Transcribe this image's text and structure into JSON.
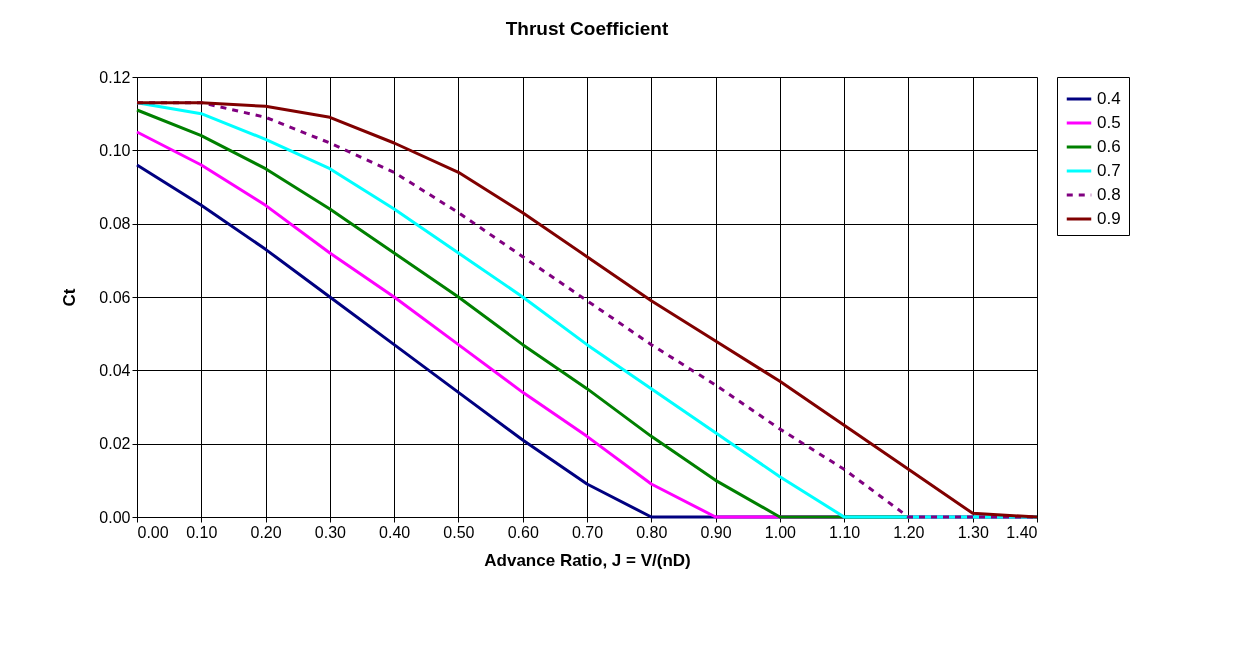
{
  "chart_data": {
    "type": "line",
    "title": "Thrust Coefficient",
    "xlabel": "Advance Ratio, J = V/(nD)",
    "ylabel": "Ct",
    "x": [
      0,
      0.1,
      0.2,
      0.3,
      0.4,
      0.5,
      0.6,
      0.7,
      0.8,
      0.9,
      1.0,
      1.1,
      1.2,
      1.3,
      1.4
    ],
    "series": [
      {
        "name": "0.4",
        "color": "#000080",
        "line_style": "solid",
        "values": [
          0.096,
          0.085,
          0.073,
          0.06,
          0.047,
          0.034,
          0.021,
          0.009,
          0,
          0,
          0,
          0,
          0,
          0,
          0
        ]
      },
      {
        "name": "0.5",
        "color": "#ff00ff",
        "line_style": "solid",
        "values": [
          0.105,
          0.096,
          0.085,
          0.072,
          0.06,
          0.047,
          0.034,
          0.022,
          0.009,
          0,
          0,
          0,
          null,
          null,
          null
        ]
      },
      {
        "name": "0.6",
        "color": "#008000",
        "line_style": "solid",
        "values": [
          0.111,
          0.104,
          0.095,
          0.084,
          0.072,
          0.06,
          0.047,
          0.035,
          0.022,
          0.01,
          0,
          0,
          0,
          null,
          null
        ]
      },
      {
        "name": "0.7",
        "color": "#00ffff",
        "line_style": "solid",
        "values": [
          0.113,
          0.11,
          0.103,
          0.095,
          0.084,
          0.072,
          0.06,
          0.047,
          0.035,
          0.023,
          0.011,
          0,
          0,
          0,
          0
        ]
      },
      {
        "name": "0.8",
        "color": "#800080",
        "line_style": "dashed",
        "values": [
          0.113,
          0.113,
          0.109,
          0.102,
          0.094,
          0.083,
          0.071,
          0.059,
          0.047,
          0.036,
          0.024,
          0.013,
          0,
          0,
          0
        ]
      },
      {
        "name": "0.9",
        "color": "#800000",
        "line_style": "solid",
        "values": [
          0.113,
          0.113,
          0.112,
          0.109,
          0.102,
          0.094,
          0.083,
          0.071,
          0.059,
          0.048,
          0.037,
          0.025,
          0.013,
          0.001,
          0
        ]
      }
    ],
    "xlim": [
      0,
      1.4
    ],
    "xticks": [
      {
        "value": 0,
        "label": "0.00"
      },
      {
        "value": 0.1,
        "label": "0.10"
      },
      {
        "value": 0.2,
        "label": "0.20"
      },
      {
        "value": 0.3,
        "label": "0.30"
      },
      {
        "value": 0.4,
        "label": "0.40"
      },
      {
        "value": 0.5,
        "label": "0.50"
      },
      {
        "value": 0.6,
        "label": "0.60"
      },
      {
        "value": 0.7,
        "label": "0.70"
      },
      {
        "value": 0.8,
        "label": "0.80"
      },
      {
        "value": 0.9,
        "label": "0.90"
      },
      {
        "value": 1.0,
        "label": "1.00"
      },
      {
        "value": 1.1,
        "label": "1.10"
      },
      {
        "value": 1.2,
        "label": "1.20"
      },
      {
        "value": 1.3,
        "label": "1.30"
      },
      {
        "value": 1.4,
        "label": "1.40"
      }
    ],
    "ylim": [
      0,
      0.12
    ],
    "yticks": [
      {
        "value": 0,
        "label": "0.00"
      },
      0.02,
      0.04,
      0.06,
      0.08,
      {
        "value": 0.1,
        "label": "0.10"
      },
      0.12
    ],
    "grid": true,
    "legend": "right"
  }
}
